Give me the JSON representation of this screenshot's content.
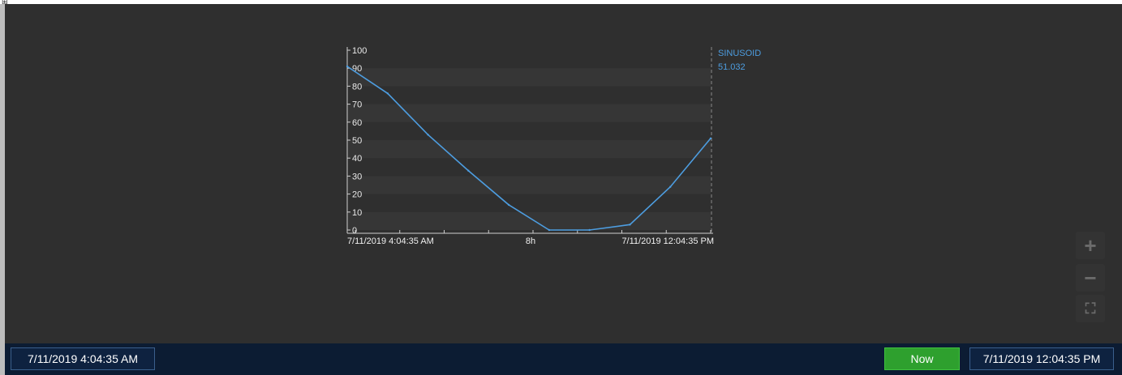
{
  "corner_glyph": "⊞",
  "trend": {
    "y_ticks": [
      "100",
      "90",
      "80",
      "70",
      "60",
      "50",
      "40",
      "30",
      "20",
      "10",
      "0"
    ],
    "x_labels": [
      "7/11/2019 4:04:35 AM",
      "8h",
      "7/11/2019 12:04:35 PM"
    ],
    "legend": {
      "name": "SINUSOID",
      "value": "51.032",
      "color": "#4d9de0"
    }
  },
  "chart_data": {
    "type": "line",
    "series": [
      {
        "name": "SINUSOID",
        "x": [
          "4:04:35 AM",
          "4:45 AM",
          "5:45 AM",
          "6:45 AM",
          "7:45 AM",
          "8:50 AM",
          "9:20 AM",
          "10:25 AM",
          "11:25 AM",
          "12:04:35 PM"
        ],
        "values": [
          91,
          76,
          53,
          33,
          14,
          0,
          0,
          3,
          24,
          51
        ]
      }
    ],
    "ylim": [
      0,
      100
    ],
    "x_range": [
      "7/11/2019 4:04:35 AM",
      "7/11/2019 12:04:35 PM"
    ],
    "xlabel": "",
    "ylabel": "",
    "grid": "alternating horizontal bands",
    "legend_position": "right"
  },
  "controls": {
    "zoom_in": "+",
    "zoom_out": "−",
    "zoom_fit": "⛶"
  },
  "bottom_bar": {
    "start_time": "7/11/2019 4:04:35 AM",
    "now_label": "Now",
    "end_time": "7/11/2019 12:04:35 PM"
  },
  "colors": {
    "background": "#2f2f2f",
    "trace": "#4d9de0",
    "bottom_bar": "#0c1c33",
    "now_button": "#2ea02e"
  }
}
